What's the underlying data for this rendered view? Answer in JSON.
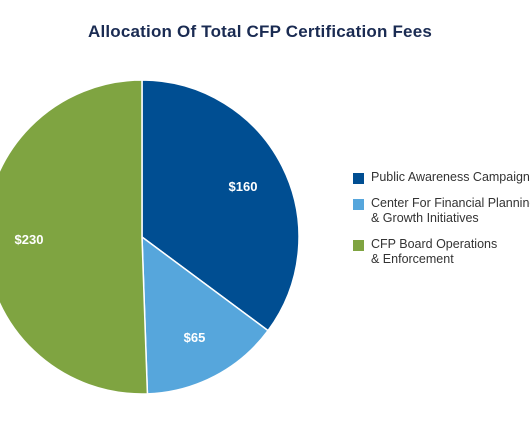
{
  "chart_data": {
    "type": "pie",
    "title": "Allocation Of Total CFP Certification Fees",
    "slices": [
      {
        "name": "Public Awareness Campaign",
        "legend_lines": [
          "Public Awareness Campaign"
        ],
        "value": 160,
        "label": "$160",
        "color": "#004e92"
      },
      {
        "name": "Center For Financial Planning & Growth Initiatives",
        "legend_lines": [
          "Center For Financial Planning",
          "& Growth Initiatives"
        ],
        "value": 65,
        "label": "$65",
        "color": "#56a6dc"
      },
      {
        "name": "CFP Board Operations & Enforcement",
        "legend_lines": [
          "CFP Board Operations",
          "& Enforcement"
        ],
        "value": 230,
        "label": "$230",
        "color": "#7fa441"
      }
    ],
    "start_angle": "12 o'clock",
    "direction": "clockwise",
    "legend_position": "right"
  }
}
